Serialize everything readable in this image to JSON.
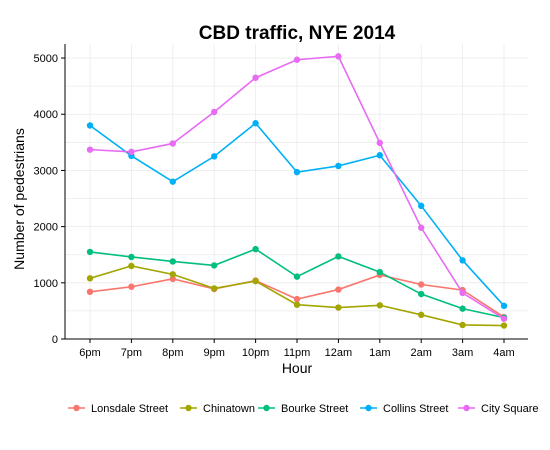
{
  "chart_data": {
    "type": "line",
    "title": "CBD traffic, NYE 2014",
    "xlabel": "Hour",
    "ylabel": "Number of pedestrians",
    "categories": [
      "6pm",
      "7pm",
      "8pm",
      "9pm",
      "10pm",
      "11pm",
      "12am",
      "1am",
      "2am",
      "3am",
      "4am"
    ],
    "ylim": [
      0,
      5250
    ],
    "yticks": [
      0,
      1000,
      2000,
      3000,
      4000,
      5000
    ],
    "grid": true,
    "legend_position": "bottom",
    "series": [
      {
        "name": "Lonsdale Street",
        "color": "#F8766D",
        "values": [
          840,
          930,
          1070,
          890,
          1040,
          710,
          880,
          1140,
          970,
          870,
          390
        ]
      },
      {
        "name": "Chinatown",
        "color": "#A3A500",
        "values": [
          1080,
          1300,
          1150,
          900,
          1030,
          610,
          560,
          600,
          430,
          250,
          240
        ]
      },
      {
        "name": "Bourke Street",
        "color": "#00BF7D",
        "values": [
          1550,
          1460,
          1380,
          1310,
          1600,
          1110,
          1470,
          1190,
          800,
          540,
          380
        ]
      },
      {
        "name": "Collins Street",
        "color": "#00B0F6",
        "values": [
          3800,
          3260,
          2800,
          3250,
          3840,
          2970,
          3080,
          3270,
          2370,
          1400,
          590
        ]
      },
      {
        "name": "City Square",
        "color": "#E76BF3",
        "values": [
          3370,
          3330,
          3480,
          4040,
          4650,
          4970,
          5030,
          3490,
          1980,
          820,
          360
        ]
      }
    ]
  }
}
